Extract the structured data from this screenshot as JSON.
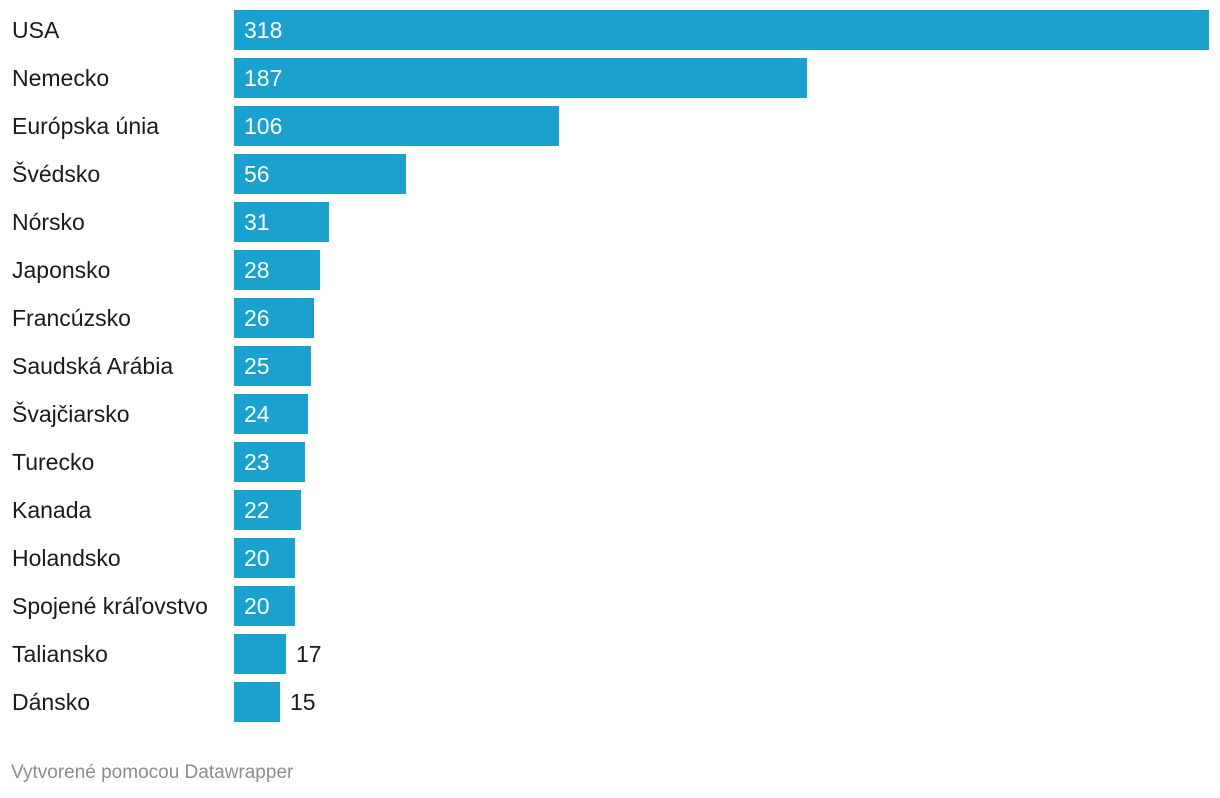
{
  "chart_data": {
    "type": "bar",
    "orientation": "horizontal",
    "categories": [
      "USA",
      "Nemecko",
      "Európska únia",
      "Švédsko",
      "Nórsko",
      "Japonsko",
      "Francúzsko",
      "Saudská Arábia",
      "Švajčiarsko",
      "Turecko",
      "Kanada",
      "Holandsko",
      "Spojené kráľovstvo",
      "Taliansko",
      "Dánsko"
    ],
    "values": [
      318,
      187,
      106,
      56,
      31,
      28,
      26,
      25,
      24,
      23,
      22,
      20,
      20,
      17,
      15
    ],
    "xlim": [
      0,
      318
    ],
    "grid": false,
    "legend": "none",
    "bar_color": "#1aa1cd"
  },
  "footer": {
    "credit": "Vytvorené pomocou Datawrapper"
  }
}
